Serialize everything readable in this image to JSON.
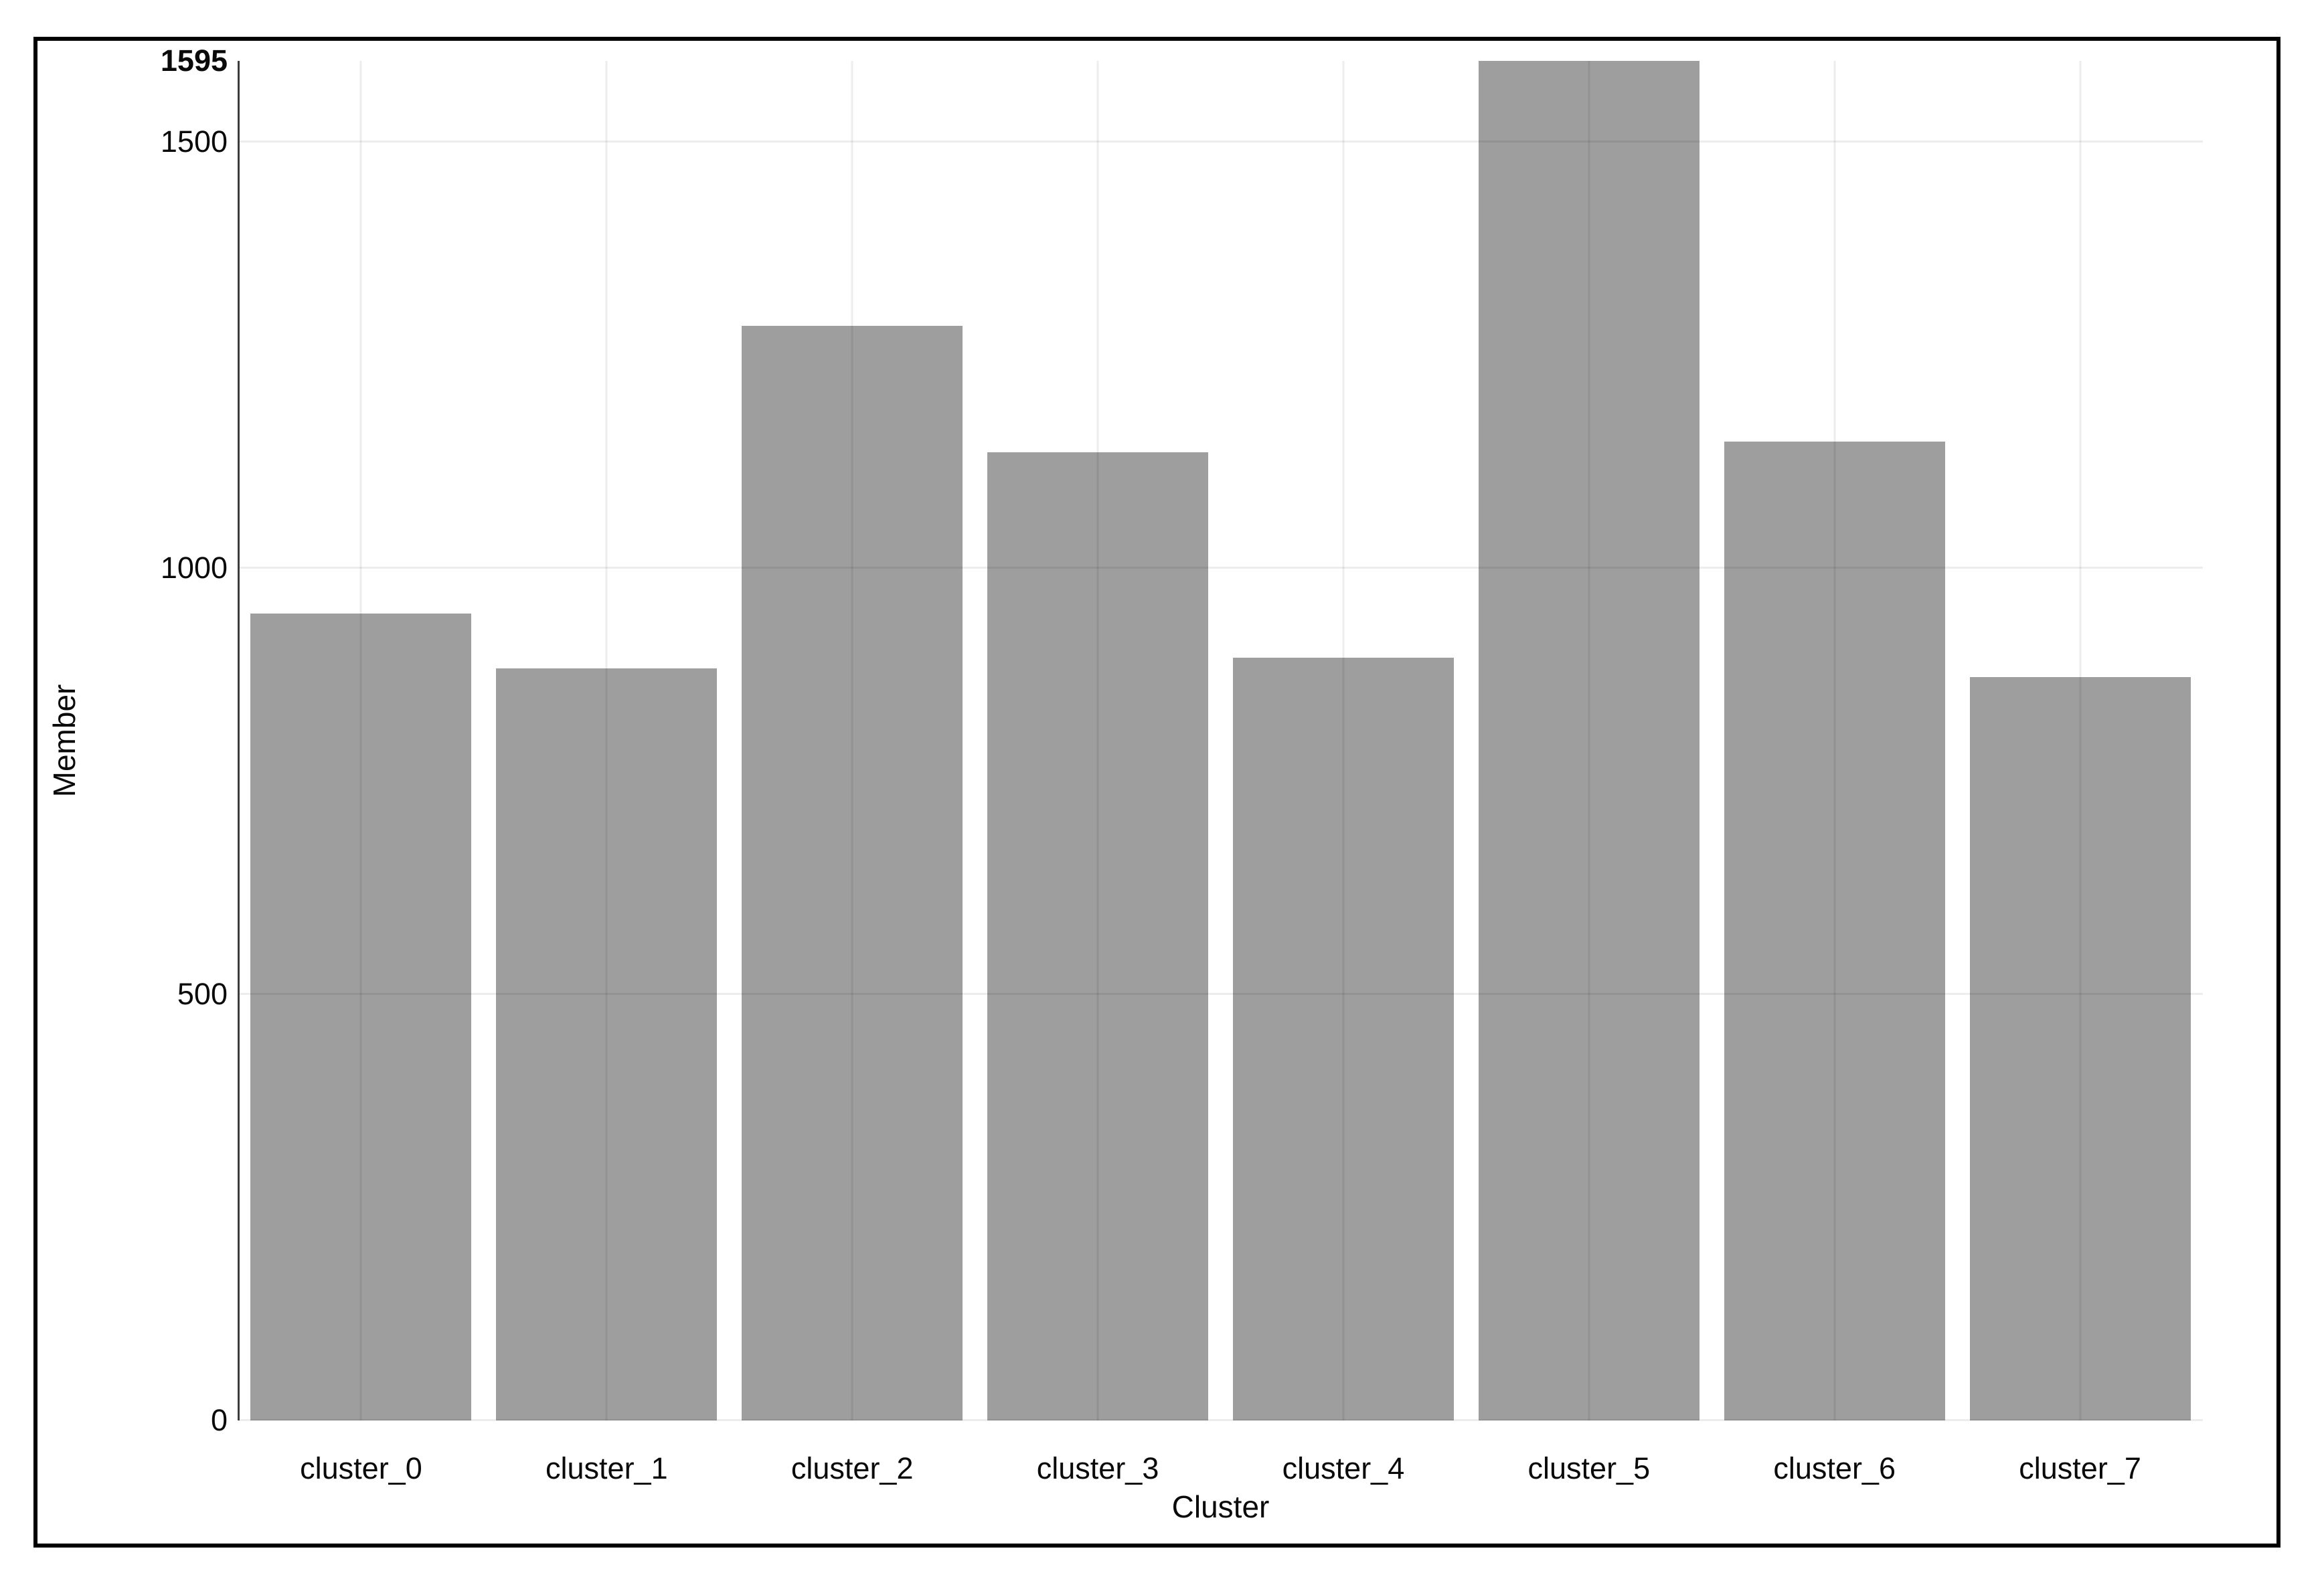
{
  "chart_data": {
    "type": "bar",
    "title": "",
    "xlabel": "Cluster",
    "ylabel": "Member",
    "categories": [
      "cluster_0",
      "cluster_1",
      "cluster_2",
      "cluster_3",
      "cluster_4",
      "cluster_5",
      "cluster_6",
      "cluster_7"
    ],
    "series": [
      {
        "name": "Member",
        "values": [
          947,
          882,
          1284,
          1136,
          895,
          1595,
          1148,
          872
        ]
      }
    ],
    "ylim": [
      0,
      1595
    ],
    "yticks": [
      {
        "value": 0,
        "label": "0",
        "bold": false,
        "grid": true
      },
      {
        "value": 500,
        "label": "500",
        "bold": false,
        "grid": true
      },
      {
        "value": 1000,
        "label": "1000",
        "bold": false,
        "grid": true
      },
      {
        "value": 1500,
        "label": "1500",
        "bold": false,
        "grid": true
      },
      {
        "value": 1595,
        "label": "1595",
        "bold": true,
        "grid": false
      }
    ],
    "grid": "on",
    "legend": "none",
    "bar_color": "#9e9e9e",
    "axis_line_color": "#3d3d3d",
    "gridline_color": "rgba(0,0,0,0.07)",
    "text_color": "#0a0a0a",
    "panel_border_color": "#000000",
    "background_color": "#ffffff"
  }
}
